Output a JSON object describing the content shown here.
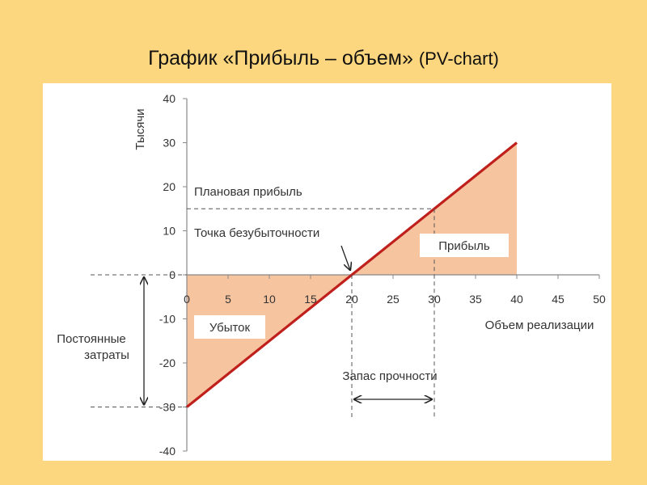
{
  "title": {
    "main": "График «Прибыль – объем»",
    "sub": "(PV-chart)"
  },
  "colors": {
    "line": "#c0201b",
    "fill": "#f7c4a0",
    "axis": "#888888",
    "dash": "#555555",
    "background": "#fdd77f",
    "panel": "#ffffff"
  },
  "chart_data": {
    "type": "line",
    "ylabel": "Тысячи",
    "xlabel": "Объем реализации",
    "xlim": [
      0,
      50
    ],
    "ylim": [
      -40,
      40
    ],
    "x_ticks": [
      0,
      5,
      10,
      15,
      20,
      25,
      30,
      35,
      40,
      45,
      50
    ],
    "y_ticks": [
      40,
      30,
      20,
      10,
      0,
      -10,
      -20,
      -30,
      -40
    ],
    "x_tick_labels": [
      "0",
      "5",
      "10",
      "15",
      "20",
      "25",
      "30",
      "35",
      "40",
      "45",
      "50"
    ],
    "y_tick_labels": [
      "40",
      "30",
      "20",
      "10",
      "0",
      "-10",
      "-20",
      "-30",
      "-40"
    ],
    "series": [
      {
        "x": [
          0,
          40
        ],
        "y": [
          -30,
          30
        ]
      }
    ],
    "grid": false,
    "shaded_regions": [
      "loss",
      "profit"
    ],
    "reference_points": {
      "break_even": [
        20,
        0
      ],
      "planned_profit": [
        30,
        15
      ],
      "fixed_costs": -30
    },
    "annotations": {
      "planned_profit": "Плановая прибыль",
      "break_even": "Точка безубыточности",
      "profit": "Прибыль",
      "loss": "Убыток",
      "fixed_costs_line1": "Постоянные",
      "fixed_costs_line2": "затраты",
      "safety_margin": "Запас прочности"
    }
  }
}
